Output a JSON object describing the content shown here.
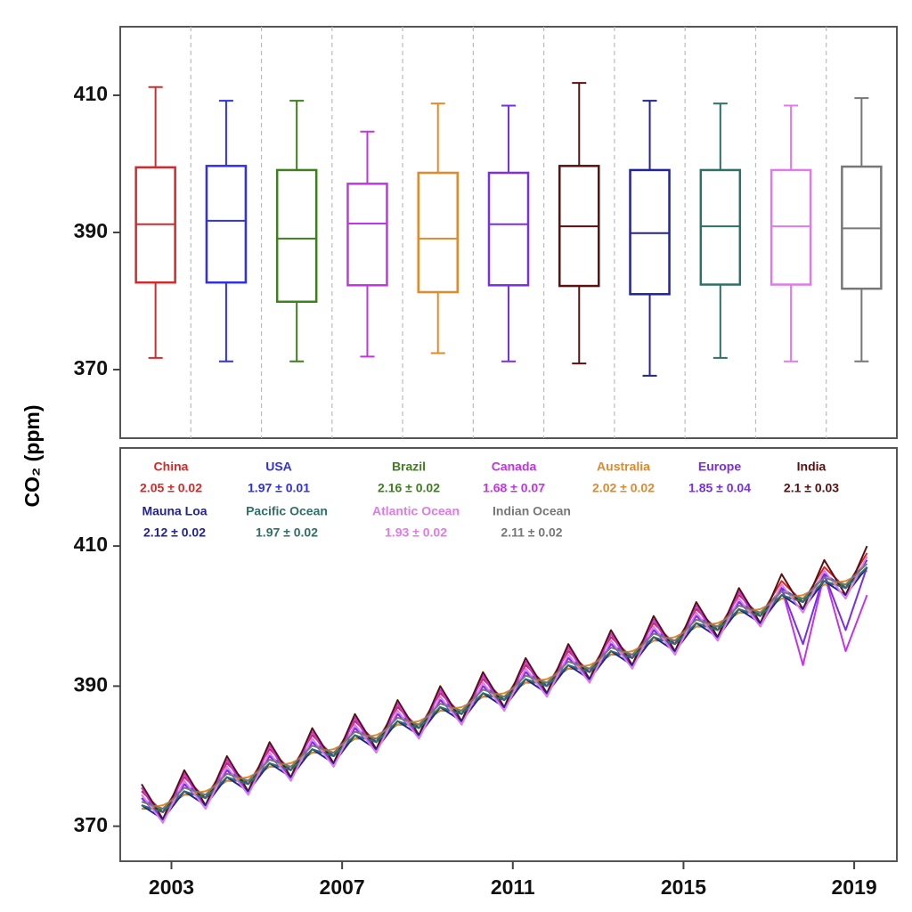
{
  "y_label": "CO₂ (ppm)",
  "chart_data": [
    {
      "type": "box",
      "ylim": [
        360,
        420
      ],
      "yticks": [
        370,
        390,
        410
      ],
      "boxes": [
        {
          "color": "#d42a2a",
          "min": 371.7,
          "q1": 382.7,
          "median": 391.2,
          "q3": 399.5,
          "max": 411.2
        },
        {
          "color": "#3030e8",
          "min": 371.2,
          "q1": 382.7,
          "median": 391.7,
          "q3": 399.7,
          "max": 409.2
        },
        {
          "color": "#3e7f1e",
          "min": 371.2,
          "q1": 379.9,
          "median": 389.1,
          "q3": 399.1,
          "max": 409.2
        },
        {
          "color": "#c235e6",
          "min": 371.9,
          "q1": 382.3,
          "median": 391.3,
          "q3": 397.1,
          "max": 404.7
        },
        {
          "color": "#e08a2b",
          "min": 372.4,
          "q1": 381.3,
          "median": 389.1,
          "q3": 398.7,
          "max": 408.8
        },
        {
          "color": "#7a2ee6",
          "min": 371.2,
          "q1": 382.3,
          "median": 391.2,
          "q3": 398.7,
          "max": 408.5
        },
        {
          "color": "#5a1010",
          "min": 370.9,
          "q1": 382.2,
          "median": 390.9,
          "q3": 399.7,
          "max": 411.8
        },
        {
          "color": "#22229a",
          "min": 369.1,
          "q1": 381.0,
          "median": 389.9,
          "q3": 399.1,
          "max": 409.2
        },
        {
          "color": "#2e7066",
          "min": 371.7,
          "q1": 382.4,
          "median": 390.9,
          "q3": 399.1,
          "max": 408.8
        },
        {
          "color": "#e07ae8",
          "min": 371.2,
          "q1": 382.4,
          "median": 390.9,
          "q3": 399.1,
          "max": 408.5
        },
        {
          "color": "#777777",
          "min": 371.2,
          "q1": 381.8,
          "median": 390.6,
          "q3": 399.6,
          "max": 409.6
        }
      ]
    },
    {
      "type": "line",
      "ylim": [
        365,
        424
      ],
      "yticks": [
        370,
        390,
        410
      ],
      "xlim": [
        2001.8,
        2020
      ],
      "xticks": [
        2003,
        2007,
        2011,
        2015,
        2019
      ],
      "x": [
        2002.3,
        2002.8,
        2003.3,
        2003.8,
        2004.3,
        2004.8,
        2005.3,
        2005.8,
        2006.3,
        2006.8,
        2007.3,
        2007.8,
        2008.3,
        2008.8,
        2009.3,
        2009.8,
        2010.3,
        2010.8,
        2011.3,
        2011.8,
        2012.3,
        2012.8,
        2013.3,
        2013.8,
        2014.3,
        2014.8,
        2015.3,
        2015.8,
        2016.3,
        2016.8,
        2017.3,
        2017.8,
        2018.3,
        2018.8,
        2019.3
      ],
      "series": [
        {
          "name": "China",
          "rate": "2.05 ± 0.02",
          "color": "#d42a2a",
          "values": [
            375,
            372,
            377,
            374,
            379,
            376,
            381,
            378,
            383,
            380,
            385,
            382,
            387,
            384,
            389,
            386,
            391,
            388,
            393,
            390,
            395,
            392,
            397,
            394,
            399,
            396,
            401,
            398,
            403,
            400,
            405,
            402,
            407,
            404,
            409
          ]
        },
        {
          "name": "USA",
          "rate": "1.97 ± 0.01",
          "color": "#3030e8",
          "values": [
            374,
            372,
            376,
            374,
            378,
            376,
            380,
            378,
            382,
            380,
            384,
            382,
            386,
            384,
            388,
            386,
            390,
            388,
            392,
            390,
            394,
            392,
            396,
            394,
            398,
            396,
            400,
            398,
            402,
            400,
            404,
            402,
            406,
            404,
            408
          ]
        },
        {
          "name": "Brazil",
          "rate": "2.16 ± 0.02",
          "color": "#3e7f1e",
          "values": [
            372.5,
            372.5,
            374.5,
            374.5,
            376.5,
            376.5,
            378.5,
            378.5,
            380.5,
            380.5,
            382.5,
            382.5,
            384.5,
            384.5,
            386.5,
            386.5,
            388.5,
            388.5,
            390.5,
            390.5,
            392.5,
            392.5,
            394.5,
            394.5,
            396.5,
            396.5,
            398.5,
            398.5,
            400.5,
            400.5,
            402.5,
            402.5,
            404.5,
            404.5,
            406.5
          ]
        },
        {
          "name": "Canada",
          "rate": "1.68 ± 0.07",
          "color": "#c235e6",
          "values": [
            375.5,
            370.5,
            377.5,
            372.5,
            379.5,
            374.5,
            381.5,
            376.5,
            383.5,
            378.5,
            385.5,
            380.5,
            387.5,
            382.5,
            389.5,
            384.5,
            391.5,
            386.5,
            393.5,
            388.5,
            395.5,
            390.5,
            397.5,
            392.5,
            399.5,
            394.5,
            401.5,
            396.5,
            403.5,
            398.5,
            404,
            393,
            406,
            395,
            403
          ]
        },
        {
          "name": "Australia",
          "rate": "2.02 ± 0.02",
          "color": "#e08a2b",
          "values": [
            372.5,
            373,
            374.5,
            375,
            376.5,
            377,
            378.5,
            379,
            380.5,
            381,
            382.5,
            383,
            384.5,
            385,
            386.5,
            387,
            388.5,
            389,
            390.5,
            391,
            392.5,
            393,
            394.5,
            395,
            396.5,
            397,
            398.5,
            399,
            400.5,
            401,
            402.5,
            403,
            404.5,
            405,
            406.5
          ]
        },
        {
          "name": "Europe",
          "rate": "1.85 ± 0.04",
          "color": "#7a2ee6",
          "values": [
            374,
            371,
            376,
            373,
            378,
            375,
            380,
            377,
            382,
            379,
            384,
            381,
            386,
            383,
            388,
            385,
            390,
            387,
            392,
            389,
            394,
            391,
            396,
            393,
            398,
            395,
            400,
            397,
            402,
            399,
            404,
            396,
            406,
            398,
            407
          ]
        },
        {
          "name": "India",
          "rate": "2.1 ± 0.03",
          "color": "#5a1010",
          "values": [
            376,
            371,
            378,
            373,
            380,
            375,
            382,
            377,
            384,
            379,
            386,
            381,
            388,
            383,
            390,
            385,
            392,
            387,
            394,
            389,
            396,
            391,
            398,
            393,
            400,
            395,
            402,
            397,
            404,
            399,
            406,
            401,
            408,
            403,
            410
          ]
        },
        {
          "name": "Mauna Loa",
          "rate": "2.12 ± 0.02",
          "color": "#22229a",
          "values": [
            373,
            371,
            375,
            373,
            377,
            375,
            379,
            377,
            381,
            379,
            383,
            381,
            385,
            383,
            387,
            385,
            389,
            387,
            391,
            389,
            393,
            391,
            395,
            393,
            397,
            395,
            399,
            397,
            401,
            399,
            403,
            401,
            405,
            403,
            407
          ]
        },
        {
          "name": "Pacific Ocean",
          "rate": "1.97 ± 0.02",
          "color": "#2e7066",
          "values": [
            373,
            372,
            375,
            374,
            377,
            376,
            379,
            378,
            381,
            380,
            383,
            382,
            385,
            384,
            387,
            386,
            389,
            388,
            391,
            390,
            393,
            392,
            395,
            394,
            397,
            396,
            399,
            398,
            401,
            400,
            403,
            402,
            405,
            404,
            407
          ]
        },
        {
          "name": "Atlantic Ocean",
          "rate": "1.93 ± 0.02",
          "color": "#e07ae8",
          "values": [
            374.5,
            370.5,
            376.5,
            372.5,
            378.5,
            374.5,
            380.5,
            376.5,
            382.5,
            378.5,
            384.5,
            380.5,
            386.5,
            382.5,
            388.5,
            384.5,
            390.5,
            386.5,
            392.5,
            388.5,
            394.5,
            390.5,
            396.5,
            392.5,
            398.5,
            394.5,
            400.5,
            396.5,
            402.5,
            398.5,
            404.5,
            400.5,
            406.5,
            402.5,
            408.5
          ]
        },
        {
          "name": "Indian Ocean",
          "rate": "2.11 ± 0.02",
          "color": "#777777",
          "values": [
            373.5,
            372.5,
            375.5,
            374.5,
            377.5,
            376.5,
            379.5,
            378.5,
            381.5,
            380.5,
            383.5,
            382.5,
            385.5,
            384.5,
            387.5,
            386.5,
            389.5,
            388.5,
            391.5,
            390.5,
            393.5,
            392.5,
            395.5,
            394.5,
            397.5,
            396.5,
            399.5,
            398.5,
            401.5,
            400.5,
            403.5,
            402.5,
            405.5,
            404.5,
            407.5
          ]
        }
      ]
    }
  ]
}
